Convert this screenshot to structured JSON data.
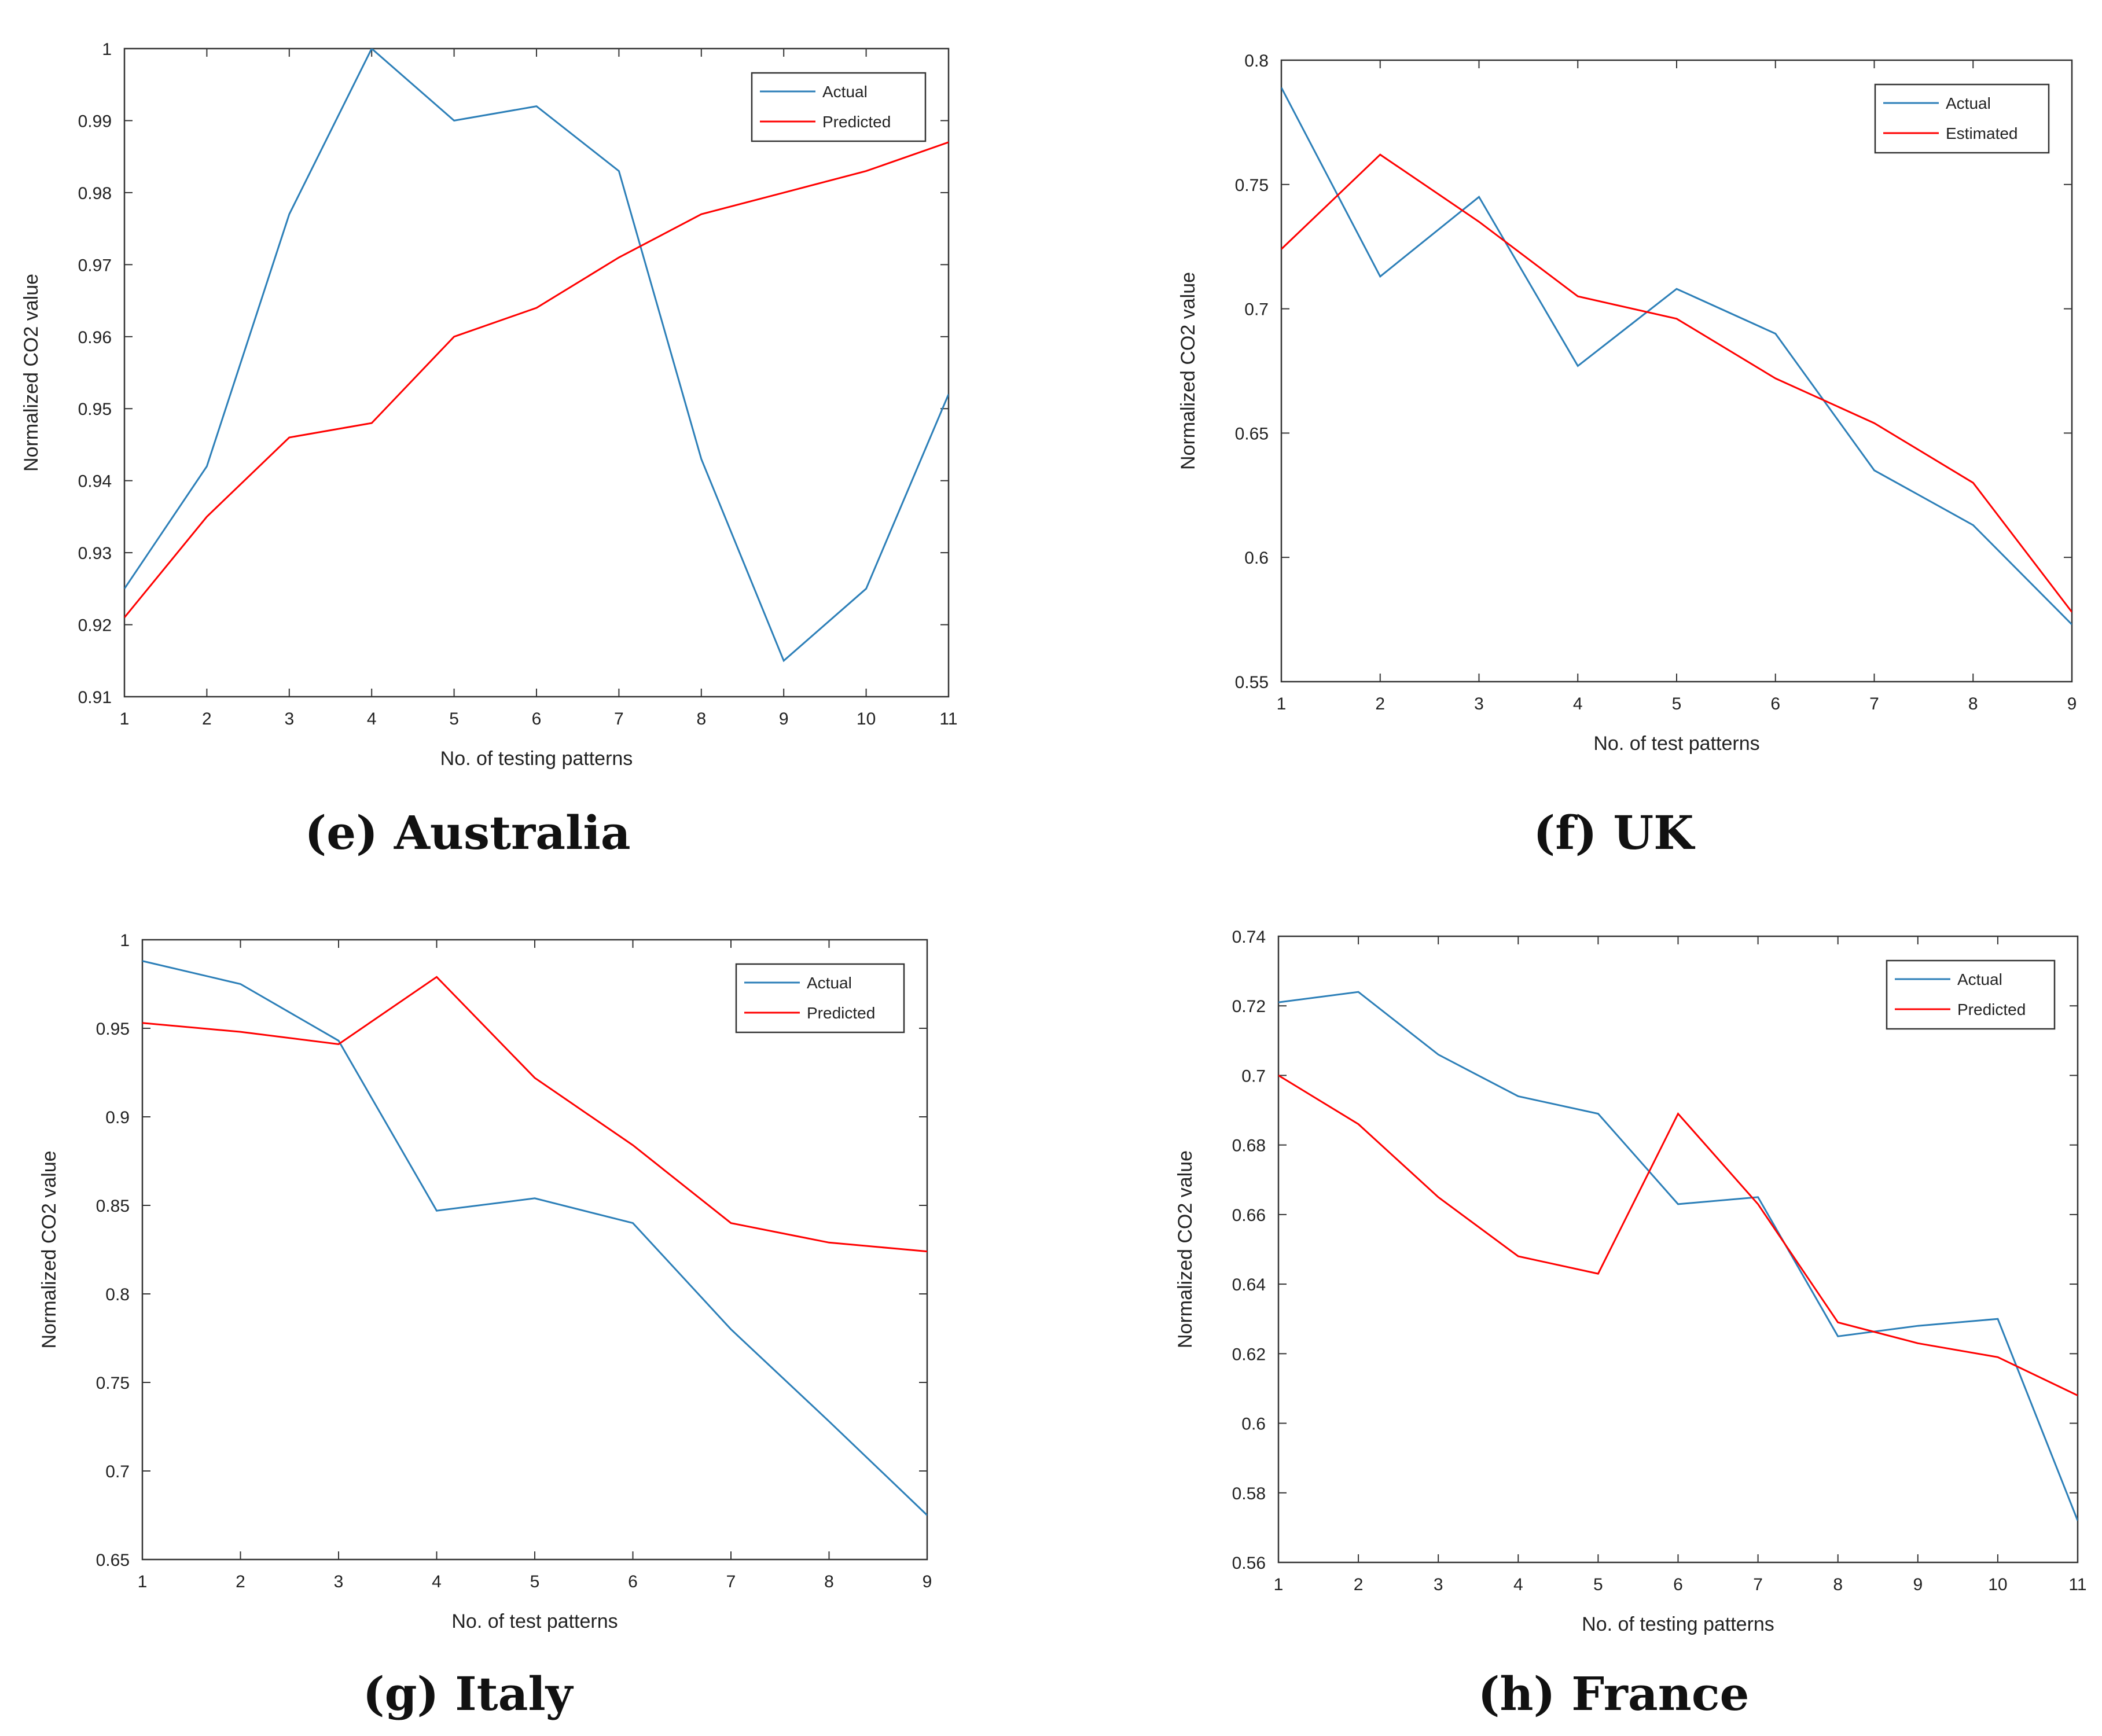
{
  "figure": {
    "captions": [
      "(e) Australia",
      "(f) UK",
      "(g) Italy",
      "(h) France"
    ]
  },
  "colors": {
    "actual": "#2C7FB8",
    "predicted": "#FF0000",
    "axis": "#333333",
    "text": "#222222"
  },
  "chart_data": [
    {
      "type": "line",
      "panel": "e",
      "caption": "(e) Australia",
      "xlabel": "No. of testing patterns",
      "ylabel": "Normalized CO2 value",
      "xlim": [
        1,
        11
      ],
      "ylim": [
        0.91,
        1
      ],
      "xticks": [
        "1",
        "2",
        "3",
        "4",
        "5",
        "6",
        "7",
        "8",
        "9",
        "10",
        "11"
      ],
      "yticks": [
        "0.91",
        "0.92",
        "0.93",
        "0.94",
        "0.95",
        "0.96",
        "0.97",
        "0.98",
        "0.99",
        "1"
      ],
      "legend_position": "top-right",
      "x": [
        1,
        2,
        3,
        4,
        5,
        6,
        7,
        8,
        9,
        10,
        11
      ],
      "series": [
        {
          "name": "Actual",
          "color_key": "actual",
          "values": [
            0.925,
            0.942,
            0.977,
            1.0,
            0.99,
            0.992,
            0.983,
            0.943,
            0.915,
            0.925,
            0.952
          ]
        },
        {
          "name": "Predicted",
          "color_key": "predicted",
          "values": [
            0.921,
            0.935,
            0.946,
            0.948,
            0.96,
            0.964,
            0.971,
            0.977,
            0.98,
            0.983,
            0.987
          ]
        }
      ]
    },
    {
      "type": "line",
      "panel": "f",
      "caption": "(f) UK",
      "xlabel": "No. of test patterns",
      "ylabel": "Normalized CO2 value",
      "xlim": [
        1,
        9
      ],
      "ylim": [
        0.55,
        0.8
      ],
      "xticks": [
        "1",
        "2",
        "3",
        "4",
        "5",
        "6",
        "7",
        "8",
        "9"
      ],
      "yticks": [
        "0.55",
        "0.6",
        "0.65",
        "0.7",
        "0.75",
        "0.8"
      ],
      "legend_position": "top-right",
      "x": [
        1,
        2,
        3,
        4,
        5,
        6,
        7,
        8,
        9
      ],
      "series": [
        {
          "name": "Actual",
          "color_key": "actual",
          "values": [
            0.789,
            0.713,
            0.745,
            0.677,
            0.708,
            0.69,
            0.635,
            0.613,
            0.573
          ]
        },
        {
          "name": "Estimated",
          "color_key": "predicted",
          "values": [
            0.724,
            0.762,
            0.735,
            0.705,
            0.696,
            0.672,
            0.654,
            0.63,
            0.578
          ]
        }
      ]
    },
    {
      "type": "line",
      "panel": "g",
      "caption": "(g) Italy",
      "xlabel": "No. of test patterns",
      "ylabel": "Normalized CO2 value",
      "xlim": [
        1,
        9
      ],
      "ylim": [
        0.65,
        1
      ],
      "xticks": [
        "1",
        "2",
        "3",
        "4",
        "5",
        "6",
        "7",
        "8",
        "9"
      ],
      "yticks": [
        "0.65",
        "0.7",
        "0.75",
        "0.8",
        "0.85",
        "0.9",
        "0.95",
        "1"
      ],
      "legend_position": "top-right",
      "x": [
        1,
        2,
        3,
        4,
        5,
        6,
        7,
        8,
        9
      ],
      "series": [
        {
          "name": "Actual",
          "color_key": "actual",
          "values": [
            0.988,
            0.975,
            0.943,
            0.847,
            0.854,
            0.84,
            0.78,
            0.728,
            0.675
          ]
        },
        {
          "name": "Predicted",
          "color_key": "predicted",
          "values": [
            0.953,
            0.948,
            0.941,
            0.979,
            0.922,
            0.884,
            0.84,
            0.829,
            0.824
          ]
        }
      ]
    },
    {
      "type": "line",
      "panel": "h",
      "caption": "(h) France",
      "xlabel": "No. of testing patterns",
      "ylabel": "Normalized CO2 value",
      "xlim": [
        1,
        11
      ],
      "ylim": [
        0.56,
        0.74
      ],
      "xticks": [
        "1",
        "2",
        "3",
        "4",
        "5",
        "6",
        "7",
        "8",
        "9",
        "10",
        "11"
      ],
      "yticks": [
        "0.56",
        "0.58",
        "0.6",
        "0.62",
        "0.64",
        "0.66",
        "0.68",
        "0.7",
        "0.72",
        "0.74"
      ],
      "legend_position": "top-right",
      "x": [
        1,
        2,
        3,
        4,
        5,
        6,
        7,
        8,
        9,
        10,
        11
      ],
      "series": [
        {
          "name": "Actual",
          "color_key": "actual",
          "values": [
            0.721,
            0.724,
            0.706,
            0.694,
            0.689,
            0.663,
            0.665,
            0.625,
            0.628,
            0.63,
            0.572
          ]
        },
        {
          "name": "Predicted",
          "color_key": "predicted",
          "values": [
            0.7,
            0.686,
            0.665,
            0.648,
            0.643,
            0.689,
            0.663,
            0.629,
            0.623,
            0.619,
            0.608
          ]
        }
      ]
    }
  ]
}
